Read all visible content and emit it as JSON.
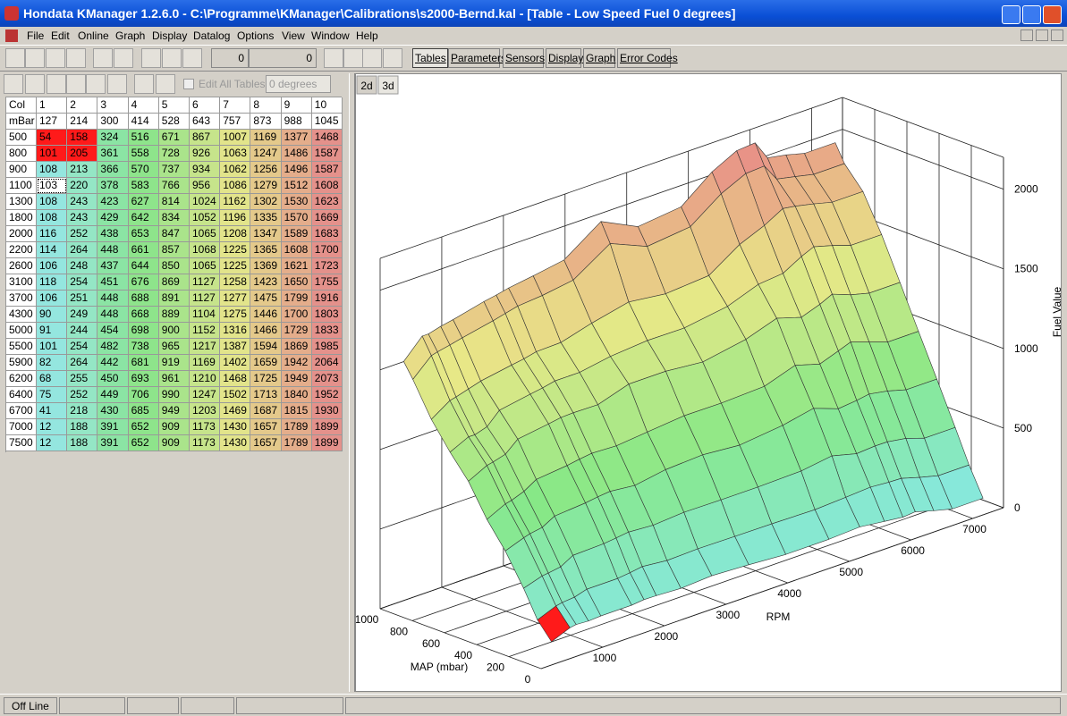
{
  "window": {
    "title": "Hondata KManager 1.2.6.0 - C:\\Programme\\KManager\\Calibrations\\s2000-Bernd.kal - [Table - Low Speed Fuel 0 degrees]"
  },
  "menu": [
    "File",
    "Edit",
    "Online",
    "Graph",
    "Display",
    "Datalog",
    "Options",
    "View",
    "Window",
    "Help"
  ],
  "toolbar": {
    "fields": [
      "0",
      "0"
    ],
    "tabs": [
      "Tables",
      "Parameters",
      "Sensors",
      "Display",
      "Graph",
      "Error Codes"
    ]
  },
  "table_toolbar": {
    "edit_all": "Edit All Tables",
    "dropdown": "0 degrees"
  },
  "table": {
    "header": [
      "Col",
      "1",
      "2",
      "3",
      "4",
      "5",
      "6",
      "7",
      "8",
      "9",
      "10"
    ],
    "map_label": "mBar",
    "map_values": [
      127,
      214,
      300,
      414,
      528,
      643,
      757,
      873,
      988,
      1045
    ],
    "rows": [
      {
        "rpm": 500,
        "values": [
          54,
          158,
          324,
          516,
          671,
          867,
          1007,
          1169,
          1377,
          1468
        ]
      },
      {
        "rpm": 800,
        "values": [
          101,
          205,
          361,
          558,
          728,
          926,
          1063,
          1247,
          1486,
          1587
        ]
      },
      {
        "rpm": 900,
        "values": [
          108,
          213,
          366,
          570,
          737,
          934,
          1062,
          1256,
          1496,
          1587
        ]
      },
      {
        "rpm": 1100,
        "values": [
          103,
          220,
          378,
          583,
          766,
          956,
          1086,
          1279,
          1512,
          1608
        ]
      },
      {
        "rpm": 1300,
        "values": [
          108,
          243,
          423,
          627,
          814,
          1024,
          1162,
          1302,
          1530,
          1623
        ]
      },
      {
        "rpm": 1800,
        "values": [
          108,
          243,
          429,
          642,
          834,
          1052,
          1196,
          1335,
          1570,
          1669
        ]
      },
      {
        "rpm": 2000,
        "values": [
          116,
          252,
          438,
          653,
          847,
          1065,
          1208,
          1347,
          1589,
          1683
        ]
      },
      {
        "rpm": 2200,
        "values": [
          114,
          264,
          448,
          661,
          857,
          1068,
          1225,
          1365,
          1608,
          1700
        ]
      },
      {
        "rpm": 2600,
        "values": [
          106,
          248,
          437,
          644,
          850,
          1065,
          1225,
          1369,
          1621,
          1723
        ]
      },
      {
        "rpm": 3100,
        "values": [
          118,
          254,
          451,
          676,
          869,
          1127,
          1258,
          1423,
          1650,
          1755
        ]
      },
      {
        "rpm": 3700,
        "values": [
          106,
          251,
          448,
          688,
          891,
          1127,
          1277,
          1475,
          1799,
          1916
        ]
      },
      {
        "rpm": 4300,
        "values": [
          90,
          249,
          448,
          668,
          889,
          1104,
          1275,
          1446,
          1700,
          1803
        ]
      },
      {
        "rpm": 5000,
        "values": [
          91,
          244,
          454,
          698,
          900,
          1152,
          1316,
          1466,
          1729,
          1833
        ]
      },
      {
        "rpm": 5500,
        "values": [
          101,
          254,
          482,
          738,
          965,
          1217,
          1387,
          1594,
          1869,
          1985
        ]
      },
      {
        "rpm": 5900,
        "values": [
          82,
          264,
          442,
          681,
          919,
          1169,
          1402,
          1659,
          1942,
          2064
        ]
      },
      {
        "rpm": 6200,
        "values": [
          68,
          255,
          450,
          693,
          961,
          1210,
          1468,
          1725,
          1949,
          2073
        ]
      },
      {
        "rpm": 6400,
        "values": [
          75,
          252,
          449,
          706,
          990,
          1247,
          1502,
          1713,
          1840,
          1952
        ]
      },
      {
        "rpm": 6700,
        "values": [
          41,
          218,
          430,
          685,
          949,
          1203,
          1469,
          1687,
          1815,
          1930
        ]
      },
      {
        "rpm": 7000,
        "values": [
          12,
          188,
          391,
          652,
          909,
          1173,
          1430,
          1657,
          1789,
          1899
        ]
      },
      {
        "rpm": 7500,
        "values": [
          12,
          188,
          391,
          652,
          909,
          1173,
          1430,
          1657,
          1789,
          1899
        ]
      }
    ]
  },
  "graph": {
    "buttons": [
      "2d",
      "3d"
    ],
    "z_label": "Fuel Value",
    "x_label": "RPM",
    "y_label": "MAP (mbar)",
    "xlim": [
      0,
      7500
    ],
    "ylim": [
      0,
      1000
    ],
    "zlim": [
      0,
      2200
    ],
    "xticks": [
      1000,
      2000,
      3000,
      4000,
      5000,
      6000,
      7000
    ],
    "yticks": [
      0,
      200,
      400,
      600,
      800,
      1000
    ],
    "zticks": [
      0,
      500,
      1000,
      1500,
      2000
    ]
  },
  "status": {
    "text": "Off Line"
  }
}
